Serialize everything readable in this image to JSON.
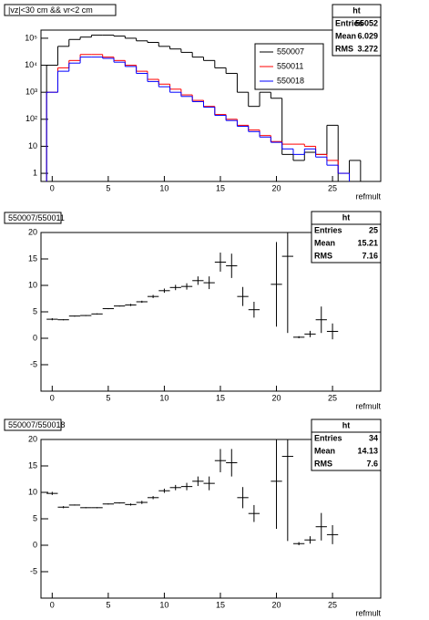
{
  "chart_data": [
    {
      "type": "histogram",
      "title": "|vz|<30 cm && vr<2 cm",
      "x_label": "refmult",
      "log_y": true,
      "bins": [
        -0.5,
        0.5,
        1.5,
        2.5,
        3.5,
        4.5,
        5.5,
        6.5,
        7.5,
        8.5,
        9.5,
        10.5,
        11.5,
        12.5,
        13.5,
        14.5,
        15.5,
        16.5,
        17.5,
        18.5,
        19.5,
        20.5,
        21.5,
        22.5,
        23.5,
        24.5,
        25.5,
        26.5,
        27.5,
        28.5
      ],
      "series": [
        {
          "name": "550007",
          "color": "#000000",
          "values": [
            10000,
            50000,
            90000,
            110000,
            130000,
            130000,
            120000,
            100000,
            80000,
            70000,
            50000,
            40000,
            30000,
            20000,
            15000,
            8000,
            5000,
            1000,
            300,
            1000,
            600,
            5,
            3,
            6,
            5,
            60,
            null,
            3,
            null
          ]
        },
        {
          "name": "550011",
          "color": "#ff0000",
          "values": [
            1000,
            8000,
            15000,
            25000,
            25000,
            20000,
            15000,
            10000,
            6000,
            3000,
            2000,
            1300,
            800,
            500,
            300,
            150,
            100,
            60,
            40,
            25,
            15,
            12,
            12,
            10,
            5,
            3,
            1,
            null,
            null
          ]
        },
        {
          "name": "550018",
          "color": "#0000ff",
          "values": [
            1000,
            6000,
            12000,
            20000,
            20000,
            18000,
            13000,
            9000,
            5000,
            2500,
            1600,
            1000,
            700,
            450,
            280,
            140,
            90,
            55,
            35,
            22,
            14,
            8,
            5,
            8,
            4,
            2,
            1,
            null,
            null
          ]
        }
      ],
      "xlim": [
        -1,
        29.3
      ],
      "xticks": [
        0,
        5,
        10,
        15,
        20,
        25
      ],
      "ylim": [
        0.5,
        200000
      ],
      "yticks": [
        1,
        10,
        {
          "value": 100,
          "label": "10²"
        },
        {
          "value": 1000,
          "label": "10³"
        },
        {
          "value": 10000,
          "label": "10⁴"
        },
        {
          "value": 100000,
          "label": "10⁵"
        }
      ],
      "stats": {
        "title": "ht",
        "labels": [
          "Entries",
          "Mean",
          "RMS"
        ],
        "values": [
          55052,
          6.029,
          3.272
        ]
      }
    },
    {
      "type": "errorbar",
      "title": "550007/550011",
      "x_label": "refmult",
      "color": "#000000",
      "x": [
        0,
        1,
        2,
        3,
        4,
        5,
        6,
        7,
        8,
        9,
        10,
        11,
        12,
        13,
        14,
        15,
        16,
        17,
        18,
        19,
        20,
        21,
        22,
        23,
        24,
        25
      ],
      "values": [
        3.6,
        3.5,
        4.2,
        4.3,
        4.6,
        5.6,
        6.1,
        6.3,
        6.9,
        7.9,
        9,
        9.6,
        9.8,
        10.9,
        10.5,
        14.4,
        13.7,
        7.9,
        5.4,
        null,
        10.2,
        15.5,
        0.2,
        0.8,
        3.5,
        1.3
      ],
      "errors": [
        0.2,
        0.1,
        0.1,
        0.1,
        0.1,
        0.1,
        0.1,
        0.2,
        0.2,
        0.3,
        0.4,
        0.5,
        0.6,
        0.8,
        1.2,
        1.8,
        2.3,
        1.8,
        1.5,
        null,
        8,
        14.5,
        0.2,
        0.6,
        2.5,
        1.5
      ],
      "xlim": [
        -1,
        29.3
      ],
      "xticks": [
        0,
        5,
        10,
        15,
        20,
        25
      ],
      "ylim": [
        -10,
        20
      ],
      "yticks": [
        -5,
        0,
        5,
        10,
        15,
        20
      ],
      "stats": {
        "title": "ht",
        "labels": [
          "Entries",
          "Mean",
          "RMS"
        ],
        "values": [
          25,
          15.21,
          7.16
        ]
      }
    },
    {
      "type": "errorbar",
      "title": "550007/550018",
      "x_label": "refmult",
      "color": "#000000",
      "x": [
        0,
        1,
        2,
        3,
        4,
        5,
        6,
        7,
        8,
        9,
        10,
        11,
        12,
        13,
        14,
        15,
        16,
        17,
        18,
        19,
        20,
        21,
        22,
        23,
        24,
        25
      ],
      "values": [
        9.8,
        7.2,
        7.6,
        7.1,
        7.1,
        7.8,
        8,
        7.7,
        8.1,
        9,
        10.3,
        10.9,
        11.1,
        12.1,
        11.7,
        16,
        15.6,
        9,
        6,
        null,
        12.1,
        16.8,
        0.3,
        1,
        3.5,
        2
      ],
      "errors": [
        0.3,
        0.2,
        0.1,
        0.1,
        0.1,
        0.1,
        0.1,
        0.2,
        0.3,
        0.3,
        0.4,
        0.5,
        0.7,
        0.9,
        1.3,
        2.2,
        2.6,
        2,
        1.6,
        null,
        9,
        16,
        0.3,
        0.7,
        2.6,
        1.8
      ],
      "xlim": [
        -1,
        29.3
      ],
      "xticks": [
        0,
        5,
        10,
        15,
        20,
        25
      ],
      "ylim": [
        -10,
        20
      ],
      "yticks": [
        -5,
        0,
        5,
        10,
        15,
        20
      ],
      "stats": {
        "title": "ht",
        "labels": [
          "Entries",
          "Mean",
          "RMS"
        ],
        "values": [
          34,
          14.13,
          7.6
        ]
      }
    }
  ]
}
